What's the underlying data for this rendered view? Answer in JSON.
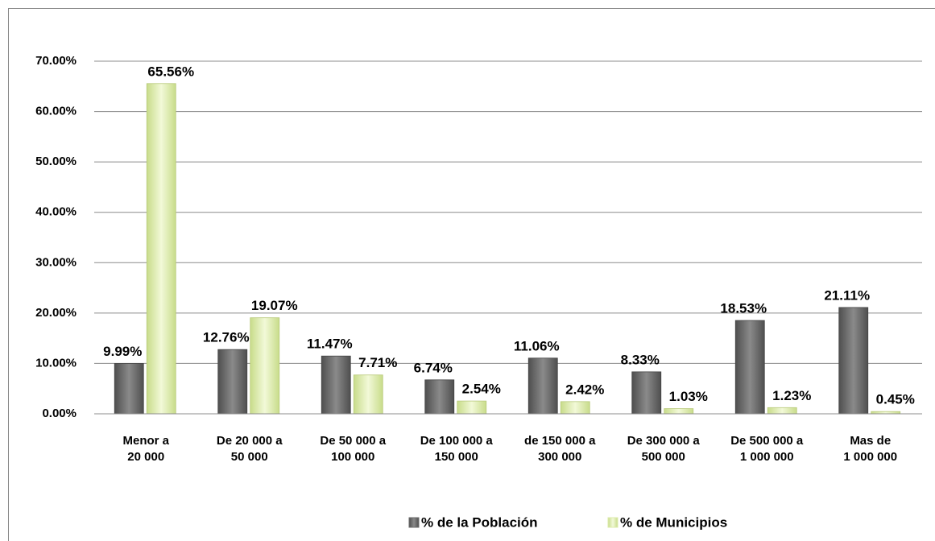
{
  "chart_data": {
    "type": "bar",
    "categories": [
      "Menor a\n20 000",
      "De 20 000 a\n50 000",
      "De 50 000 a\n100 000",
      "De 100 000 a\n150 000",
      "de 150 000 a\n300 000",
      "De 300 000 a\n500 000",
      "De 500 000 a\n1 000 000",
      "Mas de\n1 000 000"
    ],
    "series": [
      {
        "name": "% de la Población",
        "color": "#6b6b6b",
        "values": [
          9.99,
          12.76,
          11.47,
          6.74,
          11.06,
          8.33,
          18.53,
          21.11
        ],
        "value_labels": [
          "9.99%",
          "12.76%",
          "11.47%",
          "6.74%",
          "11.06%",
          "8.33%",
          "18.53%",
          "21.11%"
        ]
      },
      {
        "name": "% de Municipios",
        "color": "#dcebab",
        "values": [
          65.56,
          19.07,
          7.71,
          2.54,
          2.42,
          1.03,
          1.23,
          0.45
        ],
        "value_labels": [
          "65.56%",
          "19.07%",
          "7.71%",
          "2.54%",
          "2.42%",
          "1.03%",
          "1.23%",
          "0.45%"
        ]
      }
    ],
    "ylim": [
      0,
      70
    ],
    "yticks": [
      {
        "value": 0,
        "label": "0.00%"
      },
      {
        "value": 10,
        "label": "10.00%"
      },
      {
        "value": 20,
        "label": "20.00%"
      },
      {
        "value": 30,
        "label": "30.00%"
      },
      {
        "value": 40,
        "label": "40.00%"
      },
      {
        "value": 50,
        "label": "50.00%"
      },
      {
        "value": 60,
        "label": "60.00%"
      },
      {
        "value": 70,
        "label": "70.00%"
      }
    ],
    "grid": true,
    "legend": "bottom"
  }
}
